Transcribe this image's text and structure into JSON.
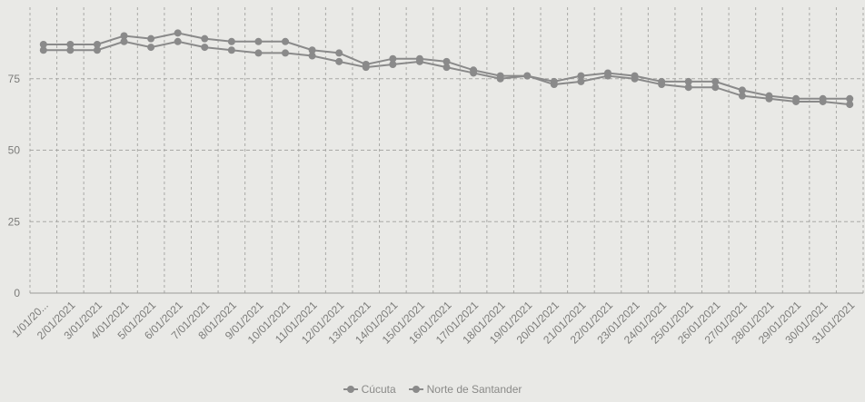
{
  "chart_data": {
    "type": "line",
    "title": "",
    "xlabel": "",
    "ylabel": "",
    "ylim": [
      0,
      100
    ],
    "yticks": [
      0,
      25,
      50,
      75
    ],
    "grid": true,
    "legend_position": "bottom",
    "x": [
      "1/01/20...",
      "2/01/2021",
      "3/01/2021",
      "4/01/2021",
      "5/01/2021",
      "6/01/2021",
      "7/01/2021",
      "8/01/2021",
      "9/01/2021",
      "10/01/2021",
      "11/01/2021",
      "12/01/2021",
      "13/01/2021",
      "14/01/2021",
      "15/01/2021",
      "16/01/2021",
      "17/01/2021",
      "18/01/2021",
      "19/01/2021",
      "20/01/2021",
      "21/01/2021",
      "22/01/2021",
      "23/01/2021",
      "24/01/2021",
      "25/01/2021",
      "26/01/2021",
      "27/01/2021",
      "28/01/2021",
      "29/01/2021",
      "30/01/2021",
      "31/01/2021"
    ],
    "series": [
      {
        "name": "Cúcuta",
        "color": "#8a8a8a",
        "values": [
          87,
          87,
          87,
          90,
          89,
          91,
          89,
          88,
          88,
          88,
          85,
          84,
          80,
          82,
          82,
          81,
          78,
          76,
          76,
          74,
          76,
          77,
          76,
          74,
          74,
          74,
          71,
          69,
          68,
          68,
          68
        ]
      },
      {
        "name": "Norte de Santander",
        "color": "#8a8a8a",
        "values": [
          85,
          85,
          85,
          88,
          86,
          88,
          86,
          85,
          84,
          84,
          83,
          81,
          79,
          80,
          81,
          79,
          77,
          75,
          76,
          73,
          74,
          76,
          75,
          73,
          72,
          72,
          69,
          68,
          67,
          67,
          66
        ]
      }
    ]
  }
}
